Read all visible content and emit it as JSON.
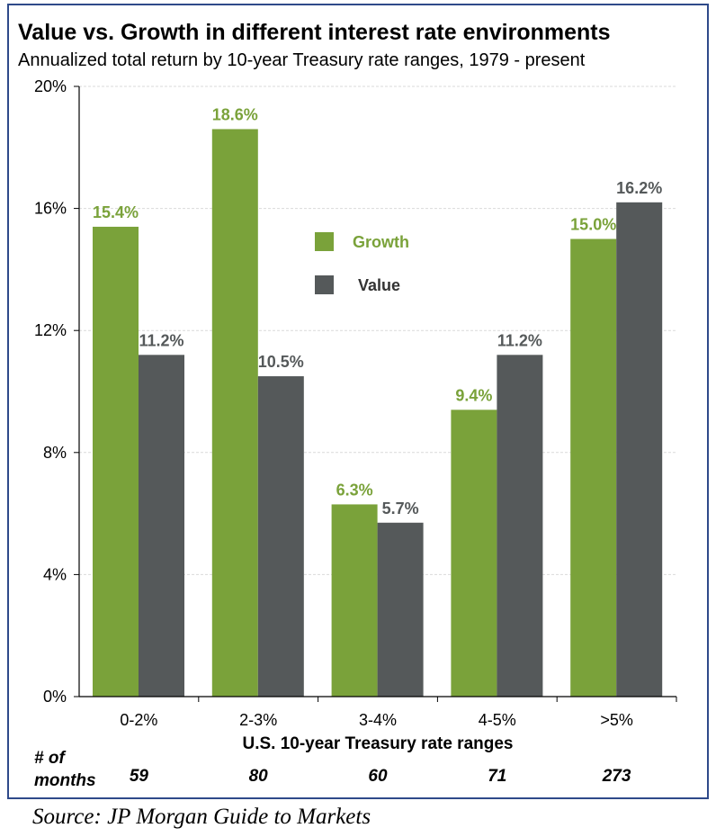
{
  "chart_data": {
    "type": "bar",
    "title": "Value vs. Growth in different interest rate environments",
    "subtitle": "Annualized total return by 10-year Treasury rate ranges, 1979 - present",
    "categories": [
      "0-2%",
      "2-3%",
      "3-4%",
      "4-5%",
      ">5%"
    ],
    "series": [
      {
        "name": "Growth",
        "values": [
          15.4,
          18.6,
          6.3,
          9.4,
          15.0
        ],
        "labels": [
          "15.4%",
          "18.6%",
          "6.3%",
          "9.4%",
          "15.0%"
        ],
        "color": "#7aa23a"
      },
      {
        "name": "Value",
        "values": [
          11.2,
          10.5,
          5.7,
          11.2,
          16.2
        ],
        "labels": [
          "11.2%",
          "10.5%",
          "5.7%",
          "11.2%",
          "16.2%"
        ],
        "color": "#55595a"
      }
    ],
    "ylim": [
      0,
      20
    ],
    "yticks": [
      0,
      4,
      8,
      12,
      16,
      20
    ],
    "ytick_labels": [
      "0%",
      "4%",
      "8%",
      "12%",
      "16%",
      "20%"
    ],
    "xlabel": "U.S. 10-year Treasury rate ranges",
    "ylabel": "",
    "grid": true,
    "legend": "center",
    "months_label": "# of\nmonths",
    "months": [
      "59",
      "80",
      "60",
      "71",
      "273"
    ]
  },
  "source": "Source: JP Morgan Guide to Markets"
}
